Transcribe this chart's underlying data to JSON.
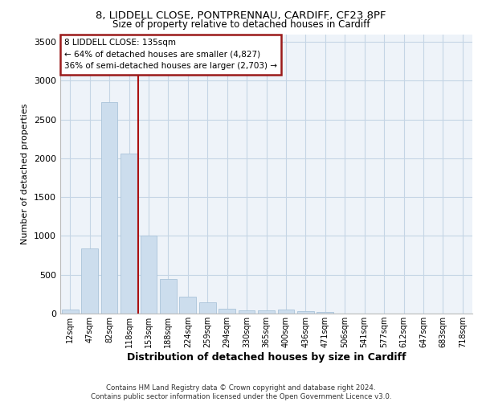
{
  "title1": "8, LIDDELL CLOSE, PONTPRENNAU, CARDIFF, CF23 8PF",
  "title2": "Size of property relative to detached houses in Cardiff",
  "xlabel": "Distribution of detached houses by size in Cardiff",
  "ylabel": "Number of detached properties",
  "categories": [
    "12sqm",
    "47sqm",
    "82sqm",
    "118sqm",
    "153sqm",
    "188sqm",
    "224sqm",
    "259sqm",
    "294sqm",
    "330sqm",
    "365sqm",
    "400sqm",
    "436sqm",
    "471sqm",
    "506sqm",
    "541sqm",
    "577sqm",
    "612sqm",
    "647sqm",
    "683sqm",
    "718sqm"
  ],
  "values": [
    55,
    840,
    2720,
    2060,
    1010,
    450,
    215,
    150,
    65,
    45,
    45,
    55,
    30,
    18,
    0,
    0,
    0,
    0,
    0,
    0,
    0
  ],
  "bar_color": "#ccdded",
  "bar_edge_color": "#aac4da",
  "grid_color": "#c5d5e5",
  "background_color": "#e8f0f8",
  "plot_bg_color": "#eef3f9",
  "annotation_box_facecolor": "#ffffff",
  "annotation_border_color": "#9b1a1a",
  "vline_color": "#aa1111",
  "annotation_text_line1": "8 LIDDELL CLOSE: 135sqm",
  "annotation_text_line2": "← 64% of detached houses are smaller (4,827)",
  "annotation_text_line3": "36% of semi-detached houses are larger (2,703) →",
  "ylim": [
    0,
    3600
  ],
  "yticks": [
    0,
    500,
    1000,
    1500,
    2000,
    2500,
    3000,
    3500
  ],
  "footer_line1": "Contains HM Land Registry data © Crown copyright and database right 2024.",
  "footer_line2": "Contains public sector information licensed under the Open Government Licence v3.0.",
  "vline_position": 3.49
}
